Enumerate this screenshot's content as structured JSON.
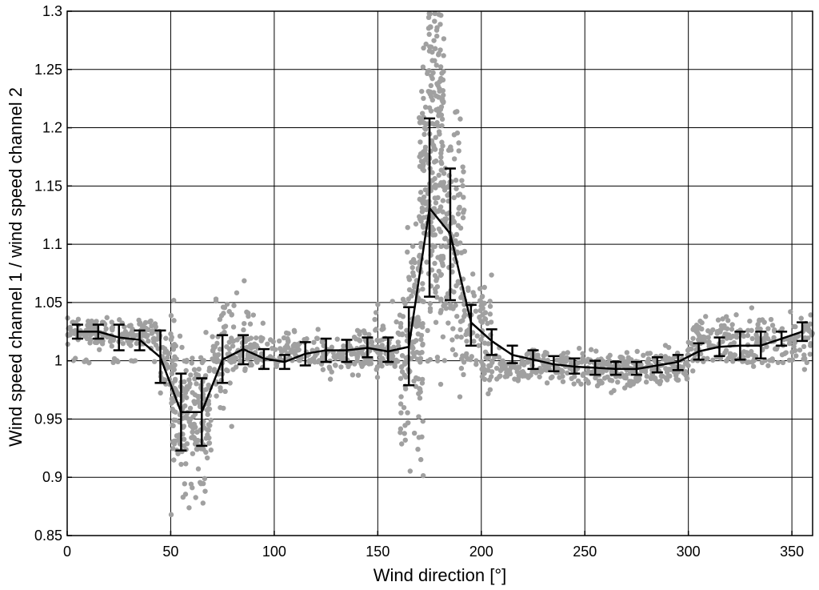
{
  "chart_data": {
    "type": "scatter",
    "xlabel": "Wind direction [°]",
    "ylabel": "Wind speed channel 1 / wind speed channel 2",
    "xlim": [
      0,
      360
    ],
    "ylim": [
      0.85,
      1.3
    ],
    "xticks": [
      0,
      50,
      100,
      150,
      200,
      250,
      300,
      350
    ],
    "xtick_labels": [
      "0",
      "50",
      "100",
      "150",
      "200",
      "250",
      "300",
      "350"
    ],
    "yticks": [
      0.85,
      0.9,
      0.95,
      1.0,
      1.05,
      1.1,
      1.15,
      1.2,
      1.25,
      1.3
    ],
    "ytick_labels": [
      "0.85",
      "0.9",
      "0.95",
      "1",
      "1.05",
      "1.1",
      "1.15",
      "1.2",
      "1.25",
      "1.3"
    ],
    "grid": true,
    "scatter_color": "#a0a0a0",
    "line_color": "#000000",
    "series": [
      {
        "kind": "mean_with_error_bars",
        "x": [
          5,
          15,
          25,
          35,
          45,
          55,
          65,
          75,
          85,
          95,
          105,
          115,
          125,
          135,
          145,
          155,
          165,
          175,
          185,
          195,
          205,
          215,
          225,
          235,
          245,
          255,
          265,
          275,
          285,
          295,
          305,
          315,
          325,
          335,
          345,
          355
        ],
        "y": [
          1.025,
          1.025,
          1.02,
          1.018,
          1.003,
          0.956,
          0.956,
          1.001,
          1.01,
          1.002,
          0.999,
          1.006,
          1.009,
          1.009,
          1.011,
          1.008,
          1.012,
          1.131,
          1.109,
          1.033,
          1.017,
          1.005,
          1.001,
          0.997,
          0.995,
          0.994,
          0.993,
          0.993,
          0.996,
          0.999,
          1.008,
          1.012,
          1.013,
          1.013,
          1.019,
          1.025
        ],
        "err_low": [
          1.019,
          1.019,
          1.009,
          1.009,
          0.981,
          0.923,
          0.927,
          0.981,
          0.997,
          0.993,
          0.993,
          0.996,
          0.999,
          0.999,
          1.003,
          0.999,
          0.979,
          1.055,
          1.052,
          1.013,
          1.005,
          0.998,
          0.993,
          0.991,
          0.989,
          0.988,
          0.988,
          0.988,
          0.99,
          0.992,
          1.001,
          1.004,
          1.001,
          1.002,
          1.013,
          1.017
        ],
        "err_high": [
          1.031,
          1.031,
          1.031,
          1.026,
          1.026,
          0.989,
          0.985,
          1.022,
          1.022,
          1.01,
          1.005,
          1.016,
          1.019,
          1.018,
          1.02,
          1.02,
          1.046,
          1.208,
          1.165,
          1.048,
          1.027,
          1.013,
          1.009,
          1.004,
          1.002,
          1.0,
          0.999,
          0.999,
          1.003,
          1.005,
          1.015,
          1.02,
          1.025,
          1.025,
          1.025,
          1.033
        ]
      },
      {
        "kind": "scatter_clusters",
        "clusters": [
          {
            "x": [
              0,
              45
            ],
            "center": 1.024,
            "spread": 0.006,
            "n": 160
          },
          {
            "x": [
              45,
              52
            ],
            "center": 1.0,
            "spread": 0.018,
            "n": 40
          },
          {
            "x": [
              50,
              70
            ],
            "center": 0.955,
            "spread": 0.025,
            "n": 180
          },
          {
            "x": [
              55,
              67
            ],
            "center": 0.91,
            "spread": 0.015,
            "n": 20
          },
          {
            "x": [
              70,
              80
            ],
            "center": 1.0,
            "spread": 0.022,
            "n": 60
          },
          {
            "x": [
              75,
              90
            ],
            "center": 1.04,
            "spread": 0.015,
            "n": 15
          },
          {
            "x": [
              80,
              160
            ],
            "center": 1.007,
            "spread": 0.008,
            "n": 260
          },
          {
            "x": [
              140,
              168
            ],
            "center": 1.02,
            "spread": 0.014,
            "n": 50
          },
          {
            "x": [
              160,
              172
            ],
            "center": 0.985,
            "spread": 0.04,
            "n": 70
          },
          {
            "x": [
              164,
              172
            ],
            "center": 1.07,
            "spread": 0.03,
            "n": 40
          },
          {
            "x": [
              170,
              182
            ],
            "center": 1.15,
            "spread": 0.065,
            "n": 220
          },
          {
            "x": [
              174,
              182
            ],
            "center": 1.255,
            "spread": 0.03,
            "n": 40
          },
          {
            "x": [
              180,
              192
            ],
            "center": 1.1,
            "spread": 0.05,
            "n": 120
          },
          {
            "x": [
              190,
              205
            ],
            "center": 1.035,
            "spread": 0.018,
            "n": 70
          },
          {
            "x": [
              200,
              300
            ],
            "center": 0.995,
            "spread": 0.007,
            "n": 320
          },
          {
            "x": [
              250,
              300
            ],
            "center": 0.985,
            "spread": 0.005,
            "n": 60
          },
          {
            "x": [
              300,
              360
            ],
            "center": 1.018,
            "spread": 0.011,
            "n": 200
          },
          {
            "x": [
              0,
              360
            ],
            "center": 1.0,
            "spread": 0.0015,
            "n": 140
          }
        ]
      }
    ]
  }
}
